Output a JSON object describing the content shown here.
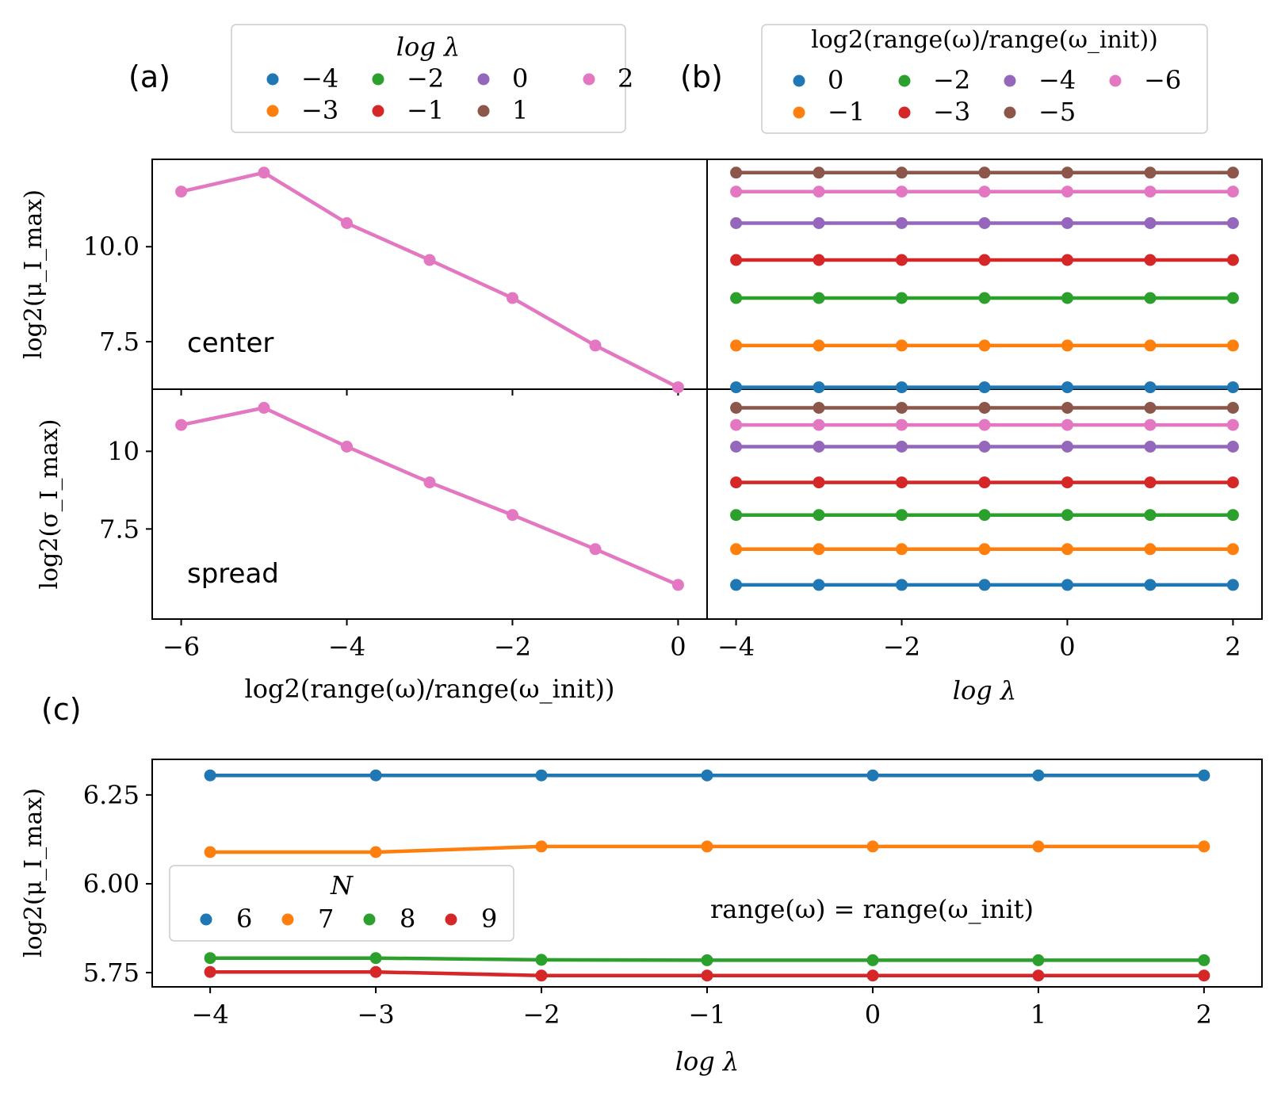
{
  "panel_labels": {
    "a": "(a)",
    "b": "(b)",
    "c": "(c)"
  },
  "annotations": {
    "center": "center",
    "spread": "spread",
    "c_note": "range(ω) = range(ω_init)"
  },
  "colors": [
    "#1f77b4",
    "#ff7f0e",
    "#2ca02c",
    "#d62728",
    "#9467bd",
    "#8c564b",
    "#e377c2"
  ],
  "legend_a": {
    "title": "log λ",
    "entries": [
      {
        "label": "−4",
        "color": "#1f77b4"
      },
      {
        "label": "−3",
        "color": "#ff7f0e"
      },
      {
        "label": "−2",
        "color": "#2ca02c"
      },
      {
        "label": "−1",
        "color": "#d62728"
      },
      {
        "label": "0",
        "color": "#9467bd"
      },
      {
        "label": "1",
        "color": "#8c564b"
      },
      {
        "label": "2",
        "color": "#e377c2"
      }
    ]
  },
  "legend_b": {
    "title": "log2(range(ω)/range(ω_init))",
    "entries": [
      {
        "label": "0",
        "color": "#1f77b4"
      },
      {
        "label": "−1",
        "color": "#ff7f0e"
      },
      {
        "label": "−2",
        "color": "#2ca02c"
      },
      {
        "label": "−3",
        "color": "#d62728"
      },
      {
        "label": "−4",
        "color": "#9467bd"
      },
      {
        "label": "−5",
        "color": "#8c564b"
      },
      {
        "label": "−6",
        "color": "#e377c2"
      }
    ]
  },
  "legend_c": {
    "title": "N",
    "entries": [
      {
        "label": "6",
        "color": "#1f77b4"
      },
      {
        "label": "7",
        "color": "#ff7f0e"
      },
      {
        "label": "8",
        "color": "#2ca02c"
      },
      {
        "label": "9",
        "color": "#d62728"
      }
    ]
  },
  "chart_data": [
    {
      "id": "a-center",
      "type": "line",
      "xlabel": "",
      "ylabel": "log2(μ_I_max)",
      "xlim": [
        -6.35,
        0.35
      ],
      "ylim": [
        6.25,
        12.3
      ],
      "xticks": [
        -6,
        -4,
        -2,
        0
      ],
      "yticks": [
        7.5,
        10.0
      ],
      "ytick_labels": [
        "7.5",
        "10.0"
      ],
      "x": [
        -6,
        -5,
        -4,
        -3,
        -2,
        -1,
        0
      ],
      "series": [
        {
          "values": [
            11.45,
            11.95,
            10.62,
            9.65,
            8.65,
            7.4,
            6.3
          ]
        }
      ]
    },
    {
      "id": "a-spread",
      "type": "line",
      "xlabel": "log2(range(ω)/range(ω_init))",
      "ylabel": "log2(σ_I_max)",
      "xlim": [
        -6.35,
        0.35
      ],
      "ylim": [
        4.6,
        12.0
      ],
      "xticks": [
        -6,
        -4,
        -2,
        0
      ],
      "xtick_labels": [
        "−6",
        "−4",
        "−2",
        "0"
      ],
      "yticks": [
        7.5,
        10.0
      ],
      "ytick_labels": [
        "7.5",
        "10"
      ],
      "x": [
        -6,
        -5,
        -4,
        -3,
        -2,
        -1,
        0
      ],
      "series": [
        {
          "values": [
            10.85,
            11.4,
            10.15,
            9.0,
            7.95,
            6.85,
            5.7
          ]
        }
      ]
    },
    {
      "id": "b-center",
      "type": "line",
      "xlabel": "",
      "ylabel": "",
      "xlim": [
        -4.35,
        2.35
      ],
      "ylim": [
        6.25,
        12.3
      ],
      "x": [
        -4,
        -3,
        -2,
        -1,
        0,
        1,
        2
      ],
      "series": [
        {
          "values": [
            6.3,
            6.3,
            6.3,
            6.3,
            6.3,
            6.3,
            6.3
          ]
        },
        {
          "values": [
            7.4,
            7.4,
            7.4,
            7.4,
            7.4,
            7.4,
            7.4
          ]
        },
        {
          "values": [
            8.65,
            8.65,
            8.65,
            8.65,
            8.65,
            8.65,
            8.65
          ]
        },
        {
          "values": [
            9.65,
            9.65,
            9.65,
            9.65,
            9.65,
            9.65,
            9.65
          ]
        },
        {
          "values": [
            10.62,
            10.62,
            10.62,
            10.62,
            10.62,
            10.62,
            10.62
          ]
        },
        {
          "values": [
            11.95,
            11.95,
            11.95,
            11.95,
            11.95,
            11.95,
            11.95
          ]
        },
        {
          "values": [
            11.45,
            11.45,
            11.45,
            11.45,
            11.45,
            11.45,
            11.45
          ]
        }
      ]
    },
    {
      "id": "b-spread",
      "type": "line",
      "xlabel": "log λ",
      "ylabel": "",
      "xlim": [
        -4.35,
        2.35
      ],
      "ylim": [
        4.6,
        12.0
      ],
      "xticks": [
        -4,
        -2,
        0,
        2
      ],
      "xtick_labels": [
        "−4",
        "−2",
        "0",
        "2"
      ],
      "x": [
        -4,
        -3,
        -2,
        -1,
        0,
        1,
        2
      ],
      "series": [
        {
          "values": [
            5.7,
            5.7,
            5.7,
            5.7,
            5.7,
            5.7,
            5.7
          ]
        },
        {
          "values": [
            6.85,
            6.85,
            6.85,
            6.85,
            6.85,
            6.85,
            6.85
          ]
        },
        {
          "values": [
            7.95,
            7.95,
            7.95,
            7.95,
            7.95,
            7.95,
            7.95
          ]
        },
        {
          "values": [
            9.0,
            9.0,
            9.0,
            9.0,
            9.0,
            9.0,
            9.0
          ]
        },
        {
          "values": [
            10.15,
            10.15,
            10.15,
            10.15,
            10.15,
            10.15,
            10.15
          ]
        },
        {
          "values": [
            11.4,
            11.4,
            11.4,
            11.4,
            11.4,
            11.4,
            11.4
          ]
        },
        {
          "values": [
            10.85,
            10.85,
            10.85,
            10.85,
            10.85,
            10.85,
            10.85
          ]
        }
      ]
    },
    {
      "id": "c",
      "type": "line",
      "xlabel": "log λ",
      "ylabel": "log2(μ_I_max)",
      "xlim": [
        -4.35,
        2.35
      ],
      "ylim": [
        5.71,
        6.35
      ],
      "xticks": [
        -4,
        -3,
        -2,
        -1,
        0,
        1,
        2
      ],
      "xtick_labels": [
        "−4",
        "−3",
        "−2",
        "−1",
        "0",
        "1",
        "2"
      ],
      "yticks": [
        5.75,
        6.0,
        6.25
      ],
      "ytick_labels": [
        "5.75",
        "6.00",
        "6.25"
      ],
      "x": [
        -4,
        -3,
        -2,
        -1,
        0,
        1,
        2
      ],
      "series": [
        {
          "values": [
            6.305,
            6.305,
            6.305,
            6.305,
            6.305,
            6.305,
            6.305
          ]
        },
        {
          "values": [
            6.089,
            6.089,
            6.105,
            6.105,
            6.105,
            6.105,
            6.105
          ]
        },
        {
          "values": [
            5.791,
            5.791,
            5.786,
            5.785,
            5.785,
            5.785,
            5.785
          ]
        },
        {
          "values": [
            5.752,
            5.752,
            5.742,
            5.742,
            5.742,
            5.742,
            5.742
          ]
        }
      ]
    }
  ]
}
